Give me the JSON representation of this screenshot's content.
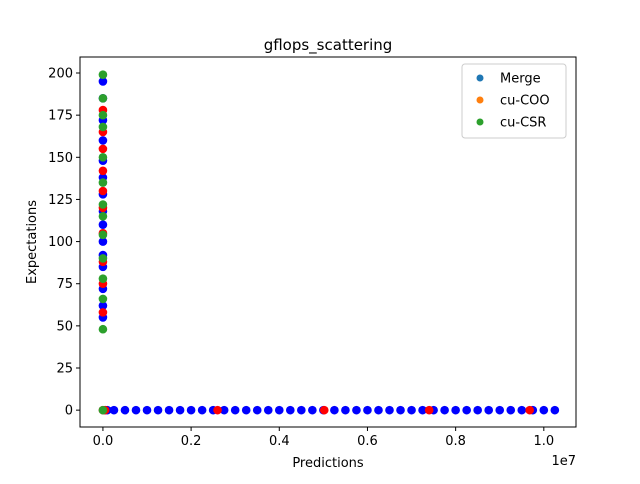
{
  "chart_data": {
    "type": "scatter",
    "title": "gflops_scattering",
    "x_label": "Predictions",
    "y_label": "Expectations",
    "x_offset_label": "1e7",
    "xlim": [
      -520000,
      10730000
    ],
    "ylim": [
      -10,
      209.5
    ],
    "xticks": [
      {
        "value": 0,
        "label": "0.0"
      },
      {
        "value": 2000000,
        "label": "0.2"
      },
      {
        "value": 4000000,
        "label": "0.4"
      },
      {
        "value": 6000000,
        "label": "0.6"
      },
      {
        "value": 8000000,
        "label": "0.8"
      },
      {
        "value": 10000000,
        "label": "1.0"
      }
    ],
    "yticks": [
      0,
      25,
      50,
      75,
      100,
      125,
      150,
      175,
      200
    ],
    "legend": "upper right",
    "series": [
      {
        "name": "Merge",
        "color": "#1f77b4",
        "marker_color": "#0000ff",
        "x": [
          0,
          0,
          0,
          0,
          0,
          0,
          0,
          0,
          0,
          0,
          0,
          0,
          0,
          0,
          0,
          50000,
          100000,
          250000,
          500000,
          750000,
          1000000,
          1250000,
          1500000,
          1750000,
          2000000,
          2250000,
          2500000,
          2750000,
          3000000,
          3250000,
          3500000,
          3750000,
          4000000,
          4250000,
          4500000,
          4750000,
          5000000,
          5250000,
          5500000,
          5750000,
          6000000,
          6250000,
          6500000,
          6750000,
          7000000,
          7250000,
          7500000,
          7750000,
          8000000,
          8250000,
          8500000,
          8750000,
          9000000,
          9250000,
          9500000,
          9750000,
          10000000,
          10250000
        ],
        "y": [
          55,
          62,
          72,
          85,
          92,
          100,
          110,
          118,
          128,
          138,
          148,
          160,
          172,
          185,
          195,
          0,
          0,
          0,
          0,
          0,
          0,
          0,
          0,
          0,
          0,
          0,
          0,
          0,
          0,
          0,
          0,
          0,
          0,
          0,
          0,
          0,
          0,
          0,
          0,
          0,
          0,
          0,
          0,
          0,
          0,
          0,
          0,
          0,
          0,
          0,
          0,
          0,
          0,
          0,
          0,
          0,
          0,
          0
        ]
      },
      {
        "name": "cu-COO",
        "color": "#ff7f0e",
        "marker_color": "#ff0000",
        "x": [
          0,
          0,
          0,
          0,
          0,
          0,
          0,
          0,
          0,
          0,
          0,
          50000,
          2600000,
          5020000,
          7400000,
          9680000
        ],
        "y": [
          58,
          75,
          88,
          105,
          120,
          130,
          142,
          155,
          165,
          178,
          0,
          0,
          0,
          0,
          0,
          0
        ]
      },
      {
        "name": "cu-CSR",
        "color": "#2ca02c",
        "marker_color": "#2ca02c",
        "x": [
          0,
          0,
          0,
          0,
          0,
          0,
          0,
          0,
          0,
          0,
          0,
          0,
          0,
          0
        ],
        "y": [
          48,
          66,
          78,
          90,
          104,
          115,
          122,
          135,
          150,
          168,
          175,
          185,
          199,
          0
        ]
      }
    ]
  }
}
